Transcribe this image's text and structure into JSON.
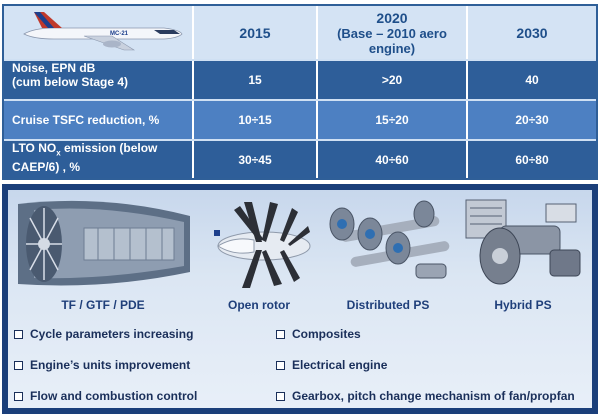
{
  "table": {
    "headers": {
      "y2015": "2015",
      "y2020": "2020",
      "y2020_note": "(Base – 2010 aero engine)",
      "y2030": "2030"
    },
    "plane_label": "MC-21",
    "rows": [
      {
        "label_line1": "Noise, EPN dB",
        "label_line2": "(cum below Stage 4)",
        "v2015": "15",
        "v2020": ">20",
        "v2030": "40"
      },
      {
        "label_line1": "Cruise TSFC reduction, %",
        "v2015": "10÷15",
        "v2020": "15÷20",
        "v2030": "20÷30"
      },
      {
        "label_pre": "LTO NO",
        "label_sub": "x",
        "label_post": " emission (below",
        "label_line2": "CAEP/6) , %",
        "v2015": "30÷45",
        "v2020": "40÷60",
        "v2030": "60÷80"
      }
    ]
  },
  "engines": [
    {
      "name": "TF / GTF / PDE"
    },
    {
      "name": "Open rotor"
    },
    {
      "name": "Distributed PS"
    },
    {
      "name": "Hybrid PS"
    }
  ],
  "bullets_left": [
    "Cycle parameters increasing",
    "Engine’s units improvement",
    "Flow and combustion control"
  ],
  "bullets_right": [
    "Composites",
    "Electrical engine",
    "Gearbox, pitch change mechanism of fan/propfan"
  ],
  "colors": {
    "header_bg": "#d4e3f4",
    "row_dark": "#2e5e99",
    "row_light": "#4d80c2",
    "panel_border": "#1b3f7a"
  }
}
